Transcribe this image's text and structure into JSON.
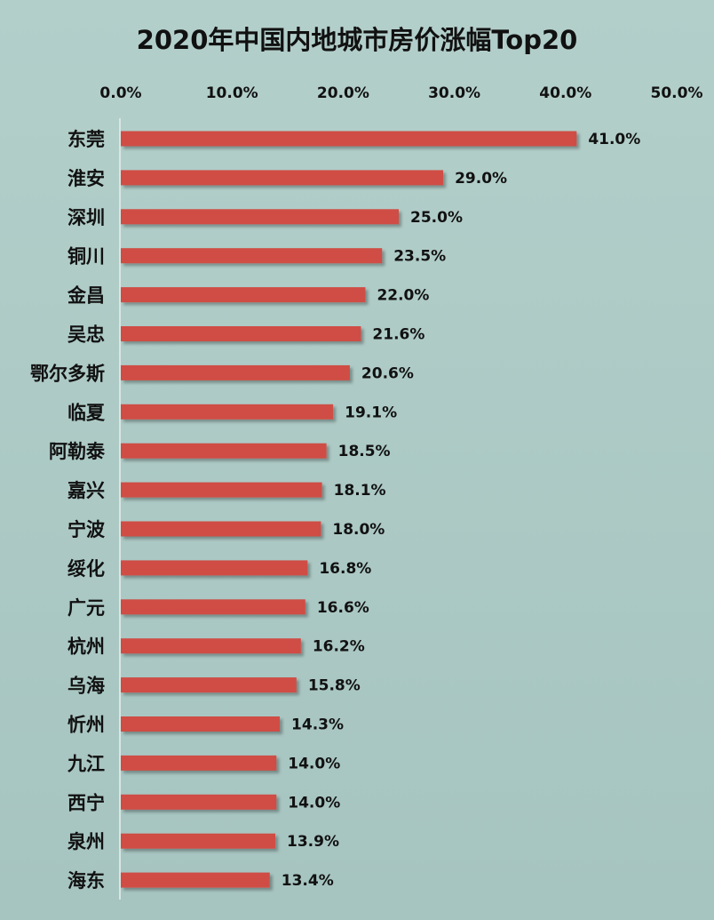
{
  "chart_data": {
    "type": "bar",
    "orientation": "horizontal",
    "title": "2020年中国内地城市房价涨幅Top20",
    "categories": [
      "东莞",
      "淮安",
      "深圳",
      "铜川",
      "金昌",
      "吴忠",
      "鄂尔多斯",
      "临夏",
      "阿勒泰",
      "嘉兴",
      "宁波",
      "绥化",
      "广元",
      "杭州",
      "乌海",
      "忻州",
      "九江",
      "西宁",
      "泉州",
      "海东"
    ],
    "values": [
      41.0,
      29.0,
      25.0,
      23.5,
      22.0,
      21.6,
      20.6,
      19.1,
      18.5,
      18.1,
      18.0,
      16.8,
      16.6,
      16.2,
      15.8,
      14.3,
      14.0,
      14.0,
      13.9,
      13.4
    ],
    "value_labels": [
      "41.0%",
      "29.0%",
      "25.0%",
      "23.5%",
      "22.0%",
      "21.6%",
      "20.6%",
      "19.1%",
      "18.5%",
      "18.1%",
      "18.0%",
      "16.8%",
      "16.6%",
      "16.2%",
      "15.8%",
      "14.3%",
      "14.0%",
      "14.0%",
      "13.9%",
      "13.4%"
    ],
    "x_ticks": [
      "0.0%",
      "10.0%",
      "20.0%",
      "30.0%",
      "40.0%",
      "50.0%"
    ],
    "xlim": [
      0,
      50
    ],
    "x_axis_position": "top",
    "grid": false,
    "legend": "none",
    "bar_color": "#cf4d44",
    "background_color": "#a9c7c3"
  }
}
